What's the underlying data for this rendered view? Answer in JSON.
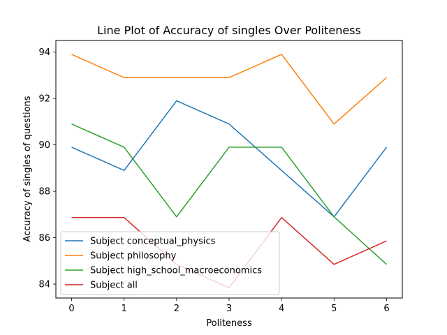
{
  "chart_data": {
    "type": "line",
    "title": "Line Plot of Accuracy of singles Over Politeness",
    "xlabel": "Politeness",
    "ylabel": "Accuracy of singles of questions",
    "x": [
      0,
      1,
      2,
      3,
      4,
      5,
      6
    ],
    "xlim": [
      -0.3,
      6.3
    ],
    "ylim": [
      83.4,
      94.5
    ],
    "xticks": [
      0,
      1,
      2,
      3,
      4,
      5,
      6
    ],
    "yticks": [
      84,
      86,
      88,
      90,
      92,
      94
    ],
    "grid": false,
    "legend_position": "lower-left",
    "series": [
      {
        "name": "Subject conceptual_physics",
        "color": "#1f77b4",
        "values": [
          89.9,
          88.9,
          91.9,
          90.9,
          88.9,
          86.9,
          89.9
        ]
      },
      {
        "name": "Subject philosophy",
        "color": "#ff7f0e",
        "values": [
          93.9,
          92.9,
          92.9,
          92.9,
          93.9,
          90.9,
          92.9
        ]
      },
      {
        "name": "Subject high_school_macroeconomics",
        "color": "#2ca02c",
        "values": [
          90.9,
          89.9,
          86.9,
          89.9,
          89.9,
          86.9,
          84.85
        ]
      },
      {
        "name": "Subject all",
        "color": "#d62728",
        "values": [
          86.87,
          86.87,
          84.85,
          83.84,
          86.87,
          84.85,
          85.86
        ]
      }
    ]
  }
}
